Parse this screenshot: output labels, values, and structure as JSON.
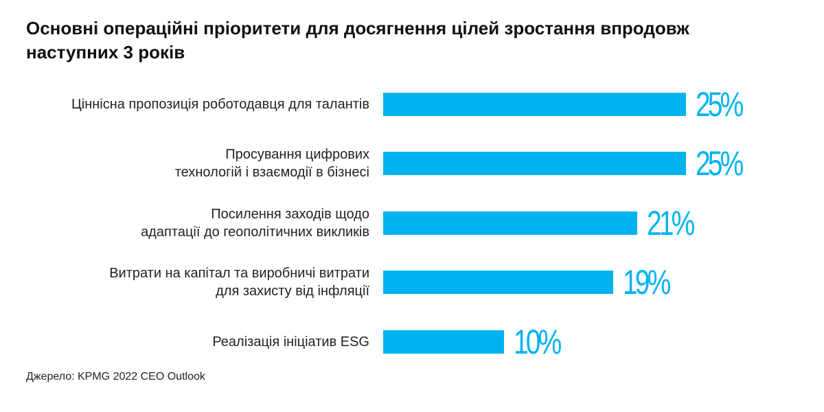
{
  "title_lines": [
    "Основні операційні пріоритети для досягнення цілей зростання впродовж",
    "наступних 3 років"
  ],
  "source": "Джерело: KPMG 2022 CEO Outlook",
  "colors": {
    "bar": "#00b3f0",
    "value_text": "#00b3f0"
  },
  "chart_data": {
    "type": "bar",
    "orientation": "horizontal",
    "title": "Основні операційні пріоритети для досягнення цілей зростання впродовж наступних 3 років",
    "xlabel": "",
    "ylabel": "",
    "xlim": [
      0,
      25
    ],
    "grid": false,
    "categories": [
      [
        "Ціннісна пропозиція роботодавця для талантів"
      ],
      [
        "Просування цифрових",
        "технологій і взаємодії в бізнесі"
      ],
      [
        "Посилення заходів щодо",
        "адаптації до геополітичних викликів"
      ],
      [
        "Витрати на капітал та виробничі витрати",
        "для захисту від інфляції"
      ],
      [
        "Реалізація ініціатив ESG"
      ]
    ],
    "values": [
      25,
      25,
      21,
      19,
      10
    ],
    "value_labels": [
      "25%",
      "25%",
      "21%",
      "19%",
      "10%"
    ]
  }
}
